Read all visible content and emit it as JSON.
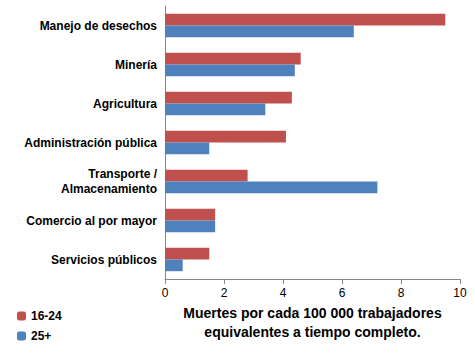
{
  "chart_data": {
    "type": "bar",
    "orientation": "horizontal",
    "categories": [
      "Manejo de desechos",
      "Minería",
      "Agricultura",
      "Administración pública",
      "Transporte / Almacenamiento",
      "Comercio al por mayor",
      "Servicios públicos"
    ],
    "series": [
      {
        "name": "16-24",
        "color": "#c0504d",
        "values": [
          9.5,
          4.6,
          4.3,
          4.1,
          2.8,
          1.7,
          1.5
        ]
      },
      {
        "name": "25+",
        "color": "#4f81bd",
        "values": [
          6.4,
          4.4,
          3.4,
          1.5,
          7.2,
          1.7,
          0.6
        ]
      }
    ],
    "x_label": "Muertes por cada 100 000 trabajadores\nequivalentes a tiempo completo.",
    "xlim": [
      0,
      10
    ],
    "xticks": [
      0,
      2,
      4,
      6,
      8,
      10
    ],
    "grid": false,
    "legend": "lower left"
  }
}
